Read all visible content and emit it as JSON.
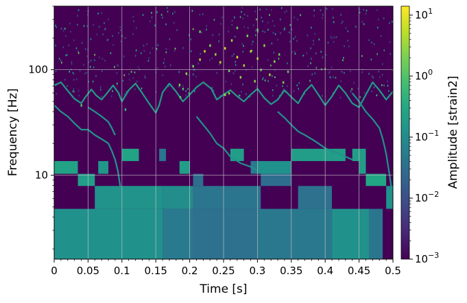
{
  "chart_data": {
    "type": "heatmap",
    "title": "",
    "xlabel": "Time [s]",
    "ylabel": "Frequency [Hz]",
    "xlim": [
      0,
      0.5
    ],
    "ylim": [
      1.6,
      400
    ],
    "yscale": "log",
    "grid": true,
    "x_ticks": [
      0,
      0.05,
      0.1,
      0.15,
      0.2,
      0.25,
      0.3,
      0.35,
      0.4,
      0.45,
      0.5
    ],
    "x_tick_labels": [
      "0",
      "0.05",
      "0.1",
      "0.15",
      "0.2",
      "0.25",
      "0.3",
      "0.35",
      "0.4",
      "0.45",
      "0.5"
    ],
    "y_ticks": [
      10,
      100
    ],
    "y_tick_labels": [
      "10",
      "100"
    ],
    "colorbar": {
      "label": "Amplitude [strain2]",
      "scale": "log",
      "range": [
        0.001,
        14
      ],
      "colormap": "viridis",
      "ticks": [
        0.001,
        0.01,
        0.1,
        1,
        10
      ],
      "tick_bases": [
        "10",
        "10",
        "10",
        "10",
        "10"
      ],
      "tick_exponents": [
        "−3",
        "−2",
        "−1",
        "0",
        "1"
      ]
    },
    "tiles": [
      {
        "t0": 0.0,
        "t1": 0.16,
        "f0": 1.6,
        "f1": 4.8,
        "v": 0.12
      },
      {
        "t0": 0.16,
        "t1": 0.205,
        "f0": 1.6,
        "f1": 4.8,
        "v": 0.05
      },
      {
        "t0": 0.205,
        "t1": 0.3,
        "f0": 1.6,
        "f1": 4.8,
        "v": 0.035
      },
      {
        "t0": 0.3,
        "t1": 0.41,
        "f0": 1.6,
        "f1": 4.8,
        "v": 0.045
      },
      {
        "t0": 0.41,
        "t1": 0.465,
        "f0": 1.6,
        "f1": 4.8,
        "v": 0.12
      },
      {
        "t0": 0.465,
        "t1": 0.485,
        "f0": 1.6,
        "f1": 4.8,
        "v": 0.04
      },
      {
        "t0": 0.485,
        "t1": 0.5,
        "f0": 1.6,
        "f1": 4.8,
        "v": 0.001
      },
      {
        "t0": 0.0,
        "t1": 0.06,
        "f0": 4.8,
        "f1": 7.9,
        "v": 0.001
      },
      {
        "t0": 0.06,
        "t1": 0.16,
        "f0": 4.8,
        "f1": 7.9,
        "v": 0.13
      },
      {
        "t0": 0.16,
        "t1": 0.205,
        "f0": 4.8,
        "f1": 7.9,
        "v": 0.1
      },
      {
        "t0": 0.205,
        "t1": 0.305,
        "f0": 4.8,
        "f1": 7.9,
        "v": 0.04
      },
      {
        "t0": 0.305,
        "t1": 0.36,
        "f0": 4.8,
        "f1": 7.9,
        "v": 0.001
      },
      {
        "t0": 0.36,
        "t1": 0.41,
        "f0": 4.8,
        "f1": 7.9,
        "v": 0.035
      },
      {
        "t0": 0.41,
        "t1": 0.49,
        "f0": 4.8,
        "f1": 7.9,
        "v": 0.001
      },
      {
        "t0": 0.49,
        "t1": 0.5,
        "f0": 4.8,
        "f1": 7.9,
        "v": 0.12
      },
      {
        "t0": 0.0,
        "t1": 0.035,
        "f0": 7.9,
        "f1": 10.3,
        "v": 0.001
      },
      {
        "t0": 0.035,
        "t1": 0.06,
        "f0": 7.9,
        "f1": 10.3,
        "v": 0.2
      },
      {
        "t0": 0.205,
        "t1": 0.22,
        "f0": 7.9,
        "f1": 10.3,
        "v": 0.03
      },
      {
        "t0": 0.305,
        "t1": 0.35,
        "f0": 7.9,
        "f1": 10.3,
        "v": 0.03
      },
      {
        "t0": 0.46,
        "t1": 0.49,
        "f0": 7.9,
        "f1": 10.3,
        "v": 0.3
      },
      {
        "t0": 0.0,
        "t1": 0.035,
        "f0": 10.3,
        "f1": 13.6,
        "v": 0.25
      },
      {
        "t0": 0.035,
        "t1": 0.065,
        "f0": 10.3,
        "f1": 13.6,
        "v": 0.001
      },
      {
        "t0": 0.065,
        "t1": 0.08,
        "f0": 10.3,
        "f1": 13.6,
        "v": 0.15
      },
      {
        "t0": 0.08,
        "t1": 0.185,
        "f0": 10.3,
        "f1": 13.6,
        "v": 0.001
      },
      {
        "t0": 0.185,
        "t1": 0.2,
        "f0": 10.3,
        "f1": 13.6,
        "v": 0.2
      },
      {
        "t0": 0.25,
        "t1": 0.29,
        "f0": 10.3,
        "f1": 13.6,
        "v": 0.001
      },
      {
        "t0": 0.29,
        "t1": 0.3,
        "f0": 10.3,
        "f1": 13.6,
        "v": 0.05
      },
      {
        "t0": 0.3,
        "t1": 0.35,
        "f0": 10.3,
        "f1": 13.6,
        "v": 0.12
      },
      {
        "t0": 0.35,
        "t1": 0.45,
        "f0": 10.3,
        "f1": 13.6,
        "v": 0.001
      },
      {
        "t0": 0.45,
        "t1": 0.46,
        "f0": 10.3,
        "f1": 13.6,
        "v": 0.2
      },
      {
        "t0": 0.0,
        "t1": 0.0,
        "f0": 13.6,
        "f1": 17.8,
        "v": 0.001
      },
      {
        "t0": 0.1,
        "t1": 0.125,
        "f0": 13.6,
        "f1": 17.8,
        "v": 0.25
      },
      {
        "t0": 0.155,
        "t1": 0.165,
        "f0": 13.6,
        "f1": 17.8,
        "v": 0.04
      },
      {
        "t0": 0.26,
        "t1": 0.28,
        "f0": 13.6,
        "f1": 17.8,
        "v": 0.2
      },
      {
        "t0": 0.35,
        "t1": 0.41,
        "f0": 13.6,
        "f1": 17.8,
        "v": 0.2
      },
      {
        "t0": 0.41,
        "t1": 0.43,
        "f0": 13.6,
        "f1": 17.8,
        "v": 0.2
      },
      {
        "t0": 0.44,
        "t1": 0.46,
        "f0": 13.6,
        "f1": 17.8,
        "v": 0.2
      },
      {
        "t0": 0.0,
        "t1": 0.5,
        "f0": 17.8,
        "f1": 400,
        "v": 0.001
      }
    ],
    "ridges": [
      {
        "v": 0.18,
        "points": [
          [
            0.0,
            71
          ],
          [
            0.01,
            76
          ],
          [
            0.02,
            63
          ],
          [
            0.03,
            53
          ],
          [
            0.04,
            48
          ],
          [
            0.047,
            56
          ],
          [
            0.055,
            65
          ],
          [
            0.062,
            57
          ],
          [
            0.07,
            52
          ],
          [
            0.078,
            60
          ],
          [
            0.087,
            71
          ],
          [
            0.095,
            60
          ],
          [
            0.1,
            50
          ],
          [
            0.11,
            64
          ],
          [
            0.12,
            74
          ],
          [
            0.13,
            60
          ],
          [
            0.14,
            48
          ],
          [
            0.15,
            39
          ],
          [
            0.155,
            46
          ],
          [
            0.16,
            61
          ],
          [
            0.17,
            74
          ],
          [
            0.18,
            62
          ],
          [
            0.19,
            50
          ],
          [
            0.2,
            58
          ],
          [
            0.21,
            68
          ],
          [
            0.22,
            76
          ],
          [
            0.232,
            66
          ],
          [
            0.24,
            52
          ],
          [
            0.25,
            58
          ],
          [
            0.26,
            64
          ],
          [
            0.27,
            56
          ],
          [
            0.28,
            50
          ],
          [
            0.29,
            58
          ],
          [
            0.3,
            66
          ],
          [
            0.31,
            54
          ],
          [
            0.32,
            47
          ],
          [
            0.33,
            52
          ],
          [
            0.34,
            64
          ],
          [
            0.35,
            55
          ],
          [
            0.36,
            48
          ],
          [
            0.37,
            62
          ],
          [
            0.38,
            72
          ],
          [
            0.39,
            58
          ],
          [
            0.4,
            46
          ],
          [
            0.41,
            56
          ],
          [
            0.42,
            71
          ],
          [
            0.43,
            60
          ],
          [
            0.44,
            48
          ],
          [
            0.45,
            44
          ],
          [
            0.46,
            58
          ],
          [
            0.47,
            76
          ],
          [
            0.48,
            64
          ],
          [
            0.49,
            52
          ],
          [
            0.5,
            62
          ]
        ]
      },
      {
        "v": 0.14,
        "points": [
          [
            0.0,
            46
          ],
          [
            0.01,
            40
          ],
          [
            0.02,
            36
          ],
          [
            0.03,
            31
          ],
          [
            0.04,
            27
          ],
          [
            0.05,
            27
          ],
          [
            0.06,
            24
          ],
          [
            0.07,
            22
          ],
          [
            0.08,
            20
          ],
          [
            0.085,
            17
          ],
          [
            0.09,
            14
          ],
          [
            0.094,
            11
          ],
          [
            0.098,
            7.5
          ]
        ]
      },
      {
        "v": 0.14,
        "points": [
          [
            0.05,
            44
          ],
          [
            0.06,
            40
          ],
          [
            0.07,
            36
          ],
          [
            0.08,
            32
          ],
          [
            0.085,
            28
          ],
          [
            0.09,
            24
          ]
        ]
      },
      {
        "v": 0.12,
        "points": [
          [
            0.21,
            36
          ],
          [
            0.22,
            30
          ],
          [
            0.23,
            25
          ],
          [
            0.24,
            20
          ],
          [
            0.25,
            18
          ],
          [
            0.26,
            15
          ],
          [
            0.275,
            13
          ],
          [
            0.29,
            12
          ],
          [
            0.3,
            11
          ]
        ]
      },
      {
        "v": 0.12,
        "points": [
          [
            0.33,
            40
          ],
          [
            0.34,
            35
          ],
          [
            0.35,
            30
          ],
          [
            0.36,
            26
          ],
          [
            0.37,
            24
          ],
          [
            0.38,
            22
          ],
          [
            0.39,
            20
          ],
          [
            0.4,
            18
          ],
          [
            0.41,
            17
          ],
          [
            0.42,
            16
          ],
          [
            0.43,
            15
          ],
          [
            0.44,
            14
          ]
        ]
      },
      {
        "v": 0.12,
        "points": [
          [
            0.44,
            60
          ],
          [
            0.45,
            50
          ],
          [
            0.46,
            40
          ],
          [
            0.47,
            34
          ],
          [
            0.48,
            28
          ],
          [
            0.485,
            22
          ],
          [
            0.49,
            16
          ],
          [
            0.495,
            10
          ],
          [
            0.5,
            6
          ]
        ]
      }
    ],
    "hotspots": [
      {
        "t": 0.185,
        "f": 72,
        "v": 2.0
      },
      {
        "t": 0.195,
        "f": 92,
        "v": 3.0
      },
      {
        "t": 0.205,
        "f": 108,
        "v": 1.5
      },
      {
        "t": 0.215,
        "f": 125,
        "v": 4.0
      },
      {
        "t": 0.222,
        "f": 150,
        "v": 6.0
      },
      {
        "t": 0.23,
        "f": 170,
        "v": 2.5
      },
      {
        "t": 0.238,
        "f": 140,
        "v": 3.0
      },
      {
        "t": 0.245,
        "f": 118,
        "v": 5.0
      },
      {
        "t": 0.252,
        "f": 160,
        "v": 8.0
      },
      {
        "t": 0.258,
        "f": 98,
        "v": 2.0
      },
      {
        "t": 0.262,
        "f": 190,
        "v": 3.5
      },
      {
        "t": 0.27,
        "f": 132,
        "v": 9.0
      },
      {
        "t": 0.275,
        "f": 85,
        "v": 2.5
      },
      {
        "t": 0.28,
        "f": 110,
        "v": 4.0
      },
      {
        "t": 0.285,
        "f": 210,
        "v": 2.0
      },
      {
        "t": 0.29,
        "f": 150,
        "v": 6.0
      },
      {
        "t": 0.296,
        "f": 78,
        "v": 3.0
      },
      {
        "t": 0.3,
        "f": 128,
        "v": 5.0
      },
      {
        "t": 0.305,
        "f": 100,
        "v": 2.0
      },
      {
        "t": 0.31,
        "f": 170,
        "v": 3.0
      },
      {
        "t": 0.318,
        "f": 90,
        "v": 4.0
      },
      {
        "t": 0.325,
        "f": 120,
        "v": 2.5
      },
      {
        "t": 0.332,
        "f": 140,
        "v": 1.5
      },
      {
        "t": 0.338,
        "f": 76,
        "v": 1.8
      },
      {
        "t": 0.345,
        "f": 96,
        "v": 1.2
      },
      {
        "t": 0.252,
        "f": 58,
        "v": 3.0
      },
      {
        "t": 0.258,
        "f": 60,
        "v": 2.5
      },
      {
        "t": 0.186,
        "f": 55,
        "v": 1.2
      },
      {
        "t": 0.19,
        "f": 66,
        "v": 0.8
      },
      {
        "t": 0.215,
        "f": 230,
        "v": 1.4
      },
      {
        "t": 0.27,
        "f": 250,
        "v": 1.5
      },
      {
        "t": 0.3,
        "f": 240,
        "v": 1.1
      },
      {
        "t": 0.04,
        "f": 46,
        "v": 1.0
      },
      {
        "t": 0.105,
        "f": 42,
        "v": 0.5
      }
    ],
    "speckle": {
      "seed": 42,
      "count": 420,
      "t_range": [
        0,
        0.5
      ],
      "f_range": [
        55,
        400
      ],
      "v_range": [
        0.005,
        2.0
      ]
    }
  }
}
